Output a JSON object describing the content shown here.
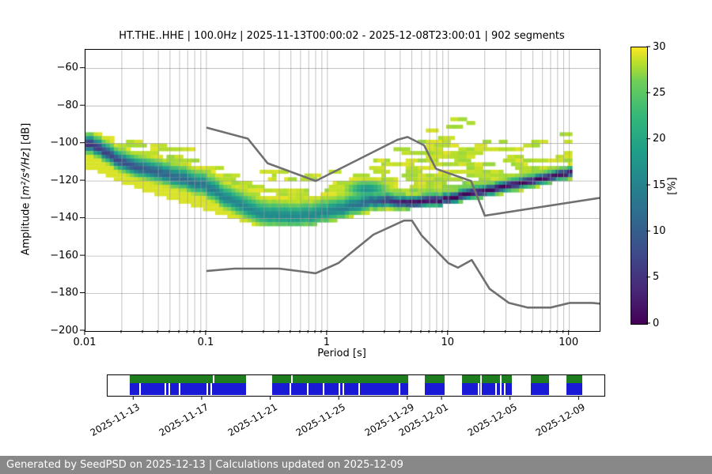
{
  "title": "HT.THE..HHE | 100.0Hz | 2025-11-13T00:00:02 - 2025-12-08T23:00:01 | 902 segments",
  "axes": {
    "x": {
      "label": "Period [s]",
      "scale": "log",
      "min": 0.01,
      "max": 178,
      "major_tick_values": [
        0.01,
        0.1,
        1,
        10,
        100
      ],
      "major_tick_labels": [
        "0.01",
        "0.1",
        "1",
        "10",
        "100"
      ]
    },
    "y": {
      "label_prefix": "Amplitude [",
      "label_math": "m²/s⁴/Hz",
      "label_suffix": "] [dB]",
      "min": -200,
      "max": -50,
      "tick_values": [
        -60,
        -80,
        -100,
        -120,
        -140,
        -160,
        -180,
        -200
      ],
      "tick_labels": [
        "−60",
        "−80",
        "−100",
        "−120",
        "−140",
        "−160",
        "−180",
        "−200"
      ]
    }
  },
  "colorbar": {
    "label": "[%]",
    "min": 0,
    "max": 30,
    "tick_values": [
      0,
      5,
      10,
      15,
      20,
      25,
      30
    ],
    "tick_labels": [
      "0",
      "5",
      "10",
      "15",
      "20",
      "25",
      "30"
    ],
    "colormap": "viridis_r",
    "viridis_stops": [
      [
        0.0,
        "#440154"
      ],
      [
        0.125,
        "#482878"
      ],
      [
        0.25,
        "#3e4a89"
      ],
      [
        0.375,
        "#31688e"
      ],
      [
        0.5,
        "#26828e"
      ],
      [
        0.625,
        "#1f9e89"
      ],
      [
        0.75,
        "#35b779"
      ],
      [
        0.875,
        "#6dcd59"
      ],
      [
        0.94,
        "#b4de2c"
      ],
      [
        1.0,
        "#fde725"
      ]
    ]
  },
  "chart_data": {
    "type": "heatmap",
    "title": "HT.THE..HHE | 100.0Hz | 2025-11-13T00:00:02 - 2025-12-08T23:00:01 | 902 segments",
    "x_axis": {
      "label": "Period [s]",
      "scale": "log",
      "range": [
        0.01,
        178
      ]
    },
    "y_axis": {
      "label": "Amplitude [m2/s4/Hz] [dB]",
      "range": [
        -200,
        -50
      ]
    },
    "color_axis": {
      "label": "[%]",
      "range": [
        0,
        30
      ],
      "colormap": "viridis_r"
    },
    "grid": true,
    "psd_mode_curve": [
      [
        0.018,
        -100
      ],
      [
        0.022,
        -102
      ],
      [
        0.03,
        -108
      ],
      [
        0.05,
        -113.5
      ],
      [
        0.09,
        -117.5
      ],
      [
        0.17,
        -122.5
      ],
      [
        0.28,
        -131
      ],
      [
        0.45,
        -137
      ],
      [
        0.7,
        -139
      ],
      [
        1.2,
        -138.5
      ],
      [
        2.0,
        -136
      ],
      [
        2.8,
        -133.5
      ],
      [
        4.0,
        -131
      ],
      [
        5.5,
        -130.7
      ],
      [
        7.5,
        -131.6
      ],
      [
        10,
        -131.3
      ],
      [
        14.5,
        -130.3
      ],
      [
        30,
        -126.1
      ],
      [
        65,
        -121.9
      ],
      [
        138,
        -117
      ],
      [
        178,
        -115.7
      ]
    ],
    "psd_upper_envelope": [
      [
        0.018,
        -93
      ],
      [
        0.03,
        -96
      ],
      [
        0.06,
        -99
      ],
      [
        0.1,
        -101
      ],
      [
        0.2,
        -104
      ],
      [
        0.4,
        -108
      ],
      [
        0.8,
        -114
      ],
      [
        1.5,
        -116
      ],
      [
        3,
        -112
      ],
      [
        5,
        -106
      ],
      [
        7,
        -99
      ],
      [
        10,
        -93
      ],
      [
        15,
        -88
      ],
      [
        21,
        -85
      ],
      [
        27,
        -88
      ],
      [
        40,
        -97
      ],
      [
        60,
        -99
      ],
      [
        80,
        -96
      ],
      [
        100,
        -98
      ],
      [
        140,
        -95
      ],
      [
        178,
        -95
      ]
    ],
    "psd_lower_envelope": [
      [
        0.018,
        -112
      ],
      [
        0.03,
        -118
      ],
      [
        0.05,
        -124
      ],
      [
        0.1,
        -130
      ],
      [
        0.2,
        -136
      ],
      [
        0.4,
        -142
      ],
      [
        0.7,
        -143.5
      ],
      [
        1.2,
        -143
      ],
      [
        2,
        -140
      ],
      [
        3,
        -137.5
      ],
      [
        4.5,
        -135
      ],
      [
        7,
        -134.5
      ],
      [
        10,
        -133.5
      ],
      [
        15,
        -132
      ],
      [
        30,
        -128.5
      ],
      [
        65,
        -124.5
      ],
      [
        138,
        -119.5
      ],
      [
        178,
        -118
      ]
    ],
    "mode_peak_percent": [
      [
        0.018,
        26
      ],
      [
        0.03,
        23
      ],
      [
        0.06,
        20
      ],
      [
        0.12,
        18
      ],
      [
        0.25,
        15
      ],
      [
        0.5,
        14
      ],
      [
        1.2,
        14
      ],
      [
        2,
        15
      ],
      [
        3,
        17
      ],
      [
        4.5,
        21
      ],
      [
        6,
        26
      ],
      [
        8,
        29
      ],
      [
        20,
        30
      ],
      [
        178,
        30
      ]
    ],
    "spread_above_db": [
      [
        0.018,
        2.8
      ],
      [
        0.1,
        3.5
      ],
      [
        0.6,
        4
      ],
      [
        2.5,
        3.5
      ],
      [
        4.5,
        2.5
      ],
      [
        7,
        2
      ],
      [
        20,
        1.8
      ],
      [
        178,
        1.7
      ]
    ],
    "spread_below_db": [
      [
        0.018,
        2.4
      ],
      [
        0.3,
        3
      ],
      [
        1.2,
        3
      ],
      [
        3,
        2.5
      ],
      [
        7,
        1.7
      ],
      [
        178,
        1.5
      ]
    ],
    "secondary_bump": {
      "period": 3.7,
      "db": -124.5,
      "sigma_logp": 0.14,
      "sigma_db": 2.6,
      "percent": 13
    },
    "noise_models": {
      "name": "Peterson NHNM / NLNM",
      "high": [
        [
          0.1,
          -91.5
        ],
        [
          0.22,
          -97.4
        ],
        [
          0.32,
          -110.5
        ],
        [
          0.8,
          -120.0
        ],
        [
          3.8,
          -98.0
        ],
        [
          4.6,
          -96.5
        ],
        [
          6.3,
          -101.0
        ],
        [
          7.9,
          -113.5
        ],
        [
          15.4,
          -120.0
        ],
        [
          20.0,
          -138.5
        ],
        [
          178,
          -129.0
        ]
      ],
      "low": [
        [
          0.1,
          -168.0
        ],
        [
          0.17,
          -166.7
        ],
        [
          0.4,
          -166.7
        ],
        [
          0.8,
          -169.2
        ],
        [
          1.24,
          -163.7
        ],
        [
          2.4,
          -148.6
        ],
        [
          4.3,
          -141.1
        ],
        [
          5.0,
          -141.1
        ],
        [
          6.0,
          -149.0
        ],
        [
          10.0,
          -163.8
        ],
        [
          12.0,
          -166.2
        ],
        [
          15.6,
          -162.1
        ],
        [
          21.9,
          -177.5
        ],
        [
          31.6,
          -185.0
        ],
        [
          45.0,
          -187.5
        ],
        [
          70.0,
          -187.5
        ],
        [
          101.0,
          -185.0
        ],
        [
          154.0,
          -185.0
        ],
        [
          178,
          -185.4
        ]
      ]
    }
  },
  "style_colors": {
    "grid": "#9b9b9b",
    "noise_model": "#707070",
    "timeline_green": "#1e7d1e",
    "timeline_blue": "#1a1ad6",
    "footer_bg": "#888888"
  },
  "timeline": {
    "date_ticks": [
      {
        "label": "2025-11-13",
        "pos_pct": 5.3
      },
      {
        "label": "2025-11-17",
        "pos_pct": 19.1
      },
      {
        "label": "2025-11-21",
        "pos_pct": 32.9
      },
      {
        "label": "2025-11-25",
        "pos_pct": 46.68
      },
      {
        "label": "2025-11-29",
        "pos_pct": 60.48
      },
      {
        "label": "2025-12-01",
        "pos_pct": 67.37
      },
      {
        "label": "2025-12-05",
        "pos_pct": 81.17
      },
      {
        "label": "2025-12-09",
        "pos_pct": 94.97
      }
    ],
    "segments_pct": [
      {
        "start": 4.5,
        "width": 23.35
      },
      {
        "start": 33.15,
        "width": 27.33
      },
      {
        "start": 63.93,
        "width": 3.98
      },
      {
        "start": 71.35,
        "width": 10.09
      },
      {
        "start": 85.15,
        "width": 3.71
      },
      {
        "start": 92.31,
        "width": 3.18
      }
    ],
    "blue_gap_lines_pct": [
      6.37,
      11.41,
      12.21,
      14.32,
      19.89,
      20.69,
      36.69,
      40.06,
      43.24,
      46.43,
      47.22,
      50.41,
      58.62,
      74.53,
      75.07,
      77.99,
      79.05,
      79.85
    ],
    "green_gap_lines_pct": [
      21.22,
      36.88,
      75.07,
      79.05
    ]
  },
  "footer": {
    "text": "Generated by SeedPSD on 2025-12-13 | Calculations updated on 2025-12-09"
  }
}
